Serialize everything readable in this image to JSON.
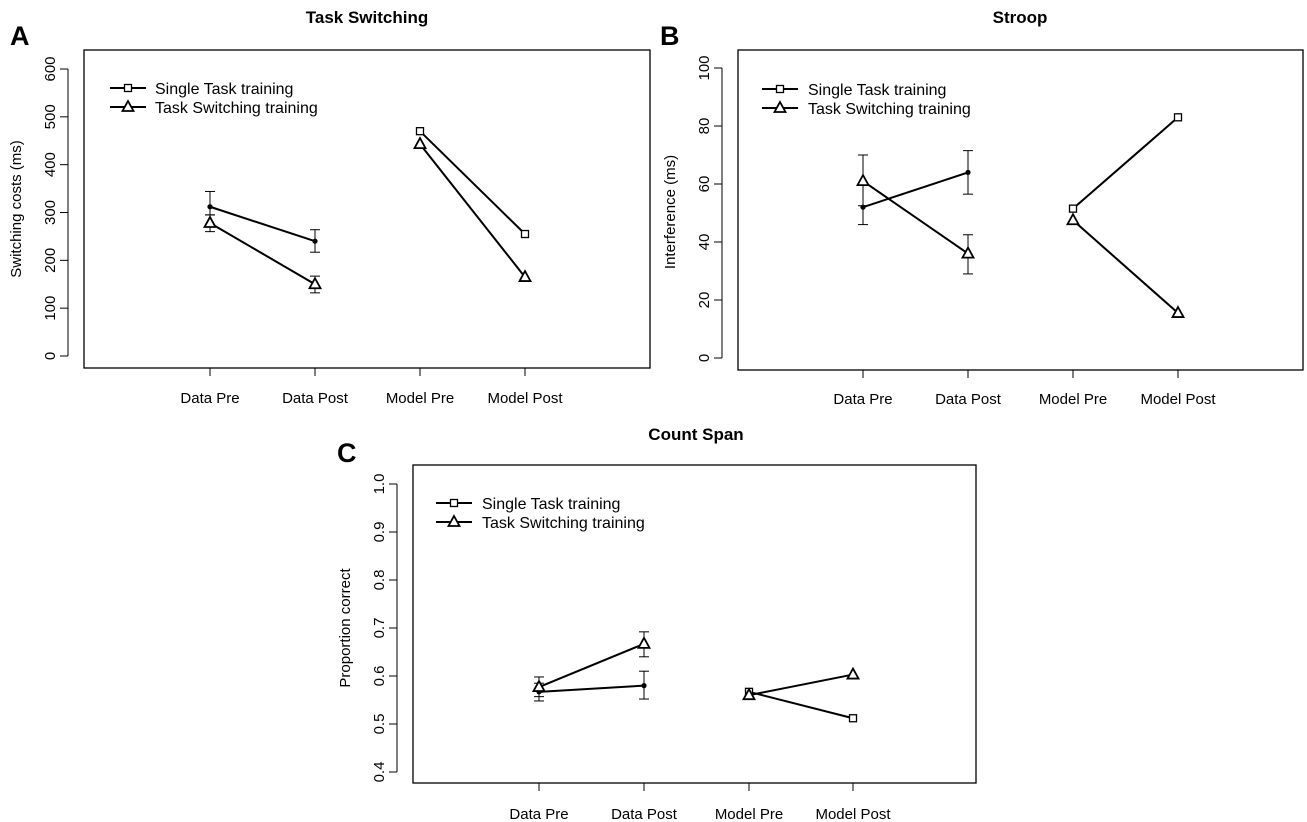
{
  "figure": {
    "panels": [
      "A",
      "B",
      "C"
    ]
  },
  "chart_data": [
    {
      "panel": "A",
      "type": "line",
      "title": "Task Switching",
      "xlabel": "",
      "ylabel": "Switching costs (ms)",
      "categories": [
        "Data Pre",
        "Data Post",
        "Model Pre",
        "Model Post"
      ],
      "ylim": [
        0,
        600
      ],
      "yticks": [
        "0",
        "100",
        "200",
        "300",
        "400",
        "500",
        "600"
      ],
      "grid": false,
      "legend_position": "top-left",
      "legend": [
        "Single Task training",
        "Task Switching training"
      ],
      "series": [
        {
          "name": "Single Task training",
          "segments": [
            {
              "x": [
                "Data Pre",
                "Data Post"
              ],
              "values": [
                312,
                240
              ],
              "marker": "dot",
              "errors": [
                [
                  295,
                  344
                ],
                [
                  217,
                  264
                ]
              ]
            },
            {
              "x": [
                "Model Pre",
                "Model Post"
              ],
              "values": [
                470,
                255
              ],
              "marker": "square"
            }
          ]
        },
        {
          "name": "Task Switching training",
          "segments": [
            {
              "x": [
                "Data Pre",
                "Data Post"
              ],
              "values": [
                278,
                150
              ],
              "marker": "triangle",
              "errors": [
                [
                  260,
                  295
                ],
                [
                  132,
                  167
                ]
              ]
            },
            {
              "x": [
                "Model Pre",
                "Model Post"
              ],
              "values": [
                443,
                165
              ],
              "marker": "triangle"
            }
          ]
        }
      ]
    },
    {
      "panel": "B",
      "type": "line",
      "title": "Stroop",
      "xlabel": "",
      "ylabel": "Interference (ms)",
      "categories": [
        "Data Pre",
        "Data Post",
        "Model Pre",
        "Model Post"
      ],
      "ylim": [
        0,
        100
      ],
      "yticks": [
        "0",
        "20",
        "40",
        "60",
        "80",
        "100"
      ],
      "grid": false,
      "legend_position": "top-left",
      "legend": [
        "Single Task training",
        "Task Switching training"
      ],
      "series": [
        {
          "name": "Single Task training",
          "segments": [
            {
              "x": [
                "Data Pre",
                "Data Post"
              ],
              "values": [
                52,
                64
              ],
              "marker": "dot",
              "errors": [
                [
                  46,
                  70
                ],
                [
                  56.5,
                  71.5
                ]
              ]
            },
            {
              "x": [
                "Model Pre",
                "Model Post"
              ],
              "values": [
                51.5,
                83
              ],
              "marker": "square"
            }
          ]
        },
        {
          "name": "Task Switching training",
          "segments": [
            {
              "x": [
                "Data Pre",
                "Data Post"
              ],
              "values": [
                61,
                36
              ],
              "marker": "triangle",
              "errors": [
                [
                  52.5,
                  70
                ],
                [
                  29,
                  42.5
                ]
              ]
            },
            {
              "x": [
                "Model Pre",
                "Model Post"
              ],
              "values": [
                47.5,
                15.5
              ],
              "marker": "triangle"
            }
          ]
        }
      ]
    },
    {
      "panel": "C",
      "type": "line",
      "title": "Count Span",
      "xlabel": "",
      "ylabel": "Proportion correct",
      "categories": [
        "Data Pre",
        "Data Post",
        "Model Pre",
        "Model Post"
      ],
      "ylim": [
        0.4,
        1.0
      ],
      "yticks": [
        "0.4",
        "0.5",
        "0.6",
        "0.7",
        "0.8",
        "0.9",
        "1.0"
      ],
      "grid": false,
      "legend_position": "top-left",
      "legend": [
        "Single Task training",
        "Task Switching training"
      ],
      "series": [
        {
          "name": "Single Task training",
          "segments": [
            {
              "x": [
                "Data Pre",
                "Data Post"
              ],
              "values": [
                0.567,
                0.58
              ],
              "marker": "dot",
              "errors": [
                [
                  0.548,
                  0.585
                ],
                [
                  0.552,
                  0.61
                ]
              ]
            },
            {
              "x": [
                "Model Pre",
                "Model Post"
              ],
              "values": [
                0.567,
                0.512
              ],
              "marker": "square"
            }
          ]
        },
        {
          "name": "Task Switching training",
          "segments": [
            {
              "x": [
                "Data Pre",
                "Data Post"
              ],
              "values": [
                0.577,
                0.667
              ],
              "marker": "triangle",
              "errors": [
                [
                  0.557,
                  0.598
                ],
                [
                  0.64,
                  0.692
                ]
              ]
            },
            {
              "x": [
                "Model Pre",
                "Model Post"
              ],
              "values": [
                0.56,
                0.603
              ],
              "marker": "triangle"
            }
          ]
        }
      ]
    }
  ]
}
